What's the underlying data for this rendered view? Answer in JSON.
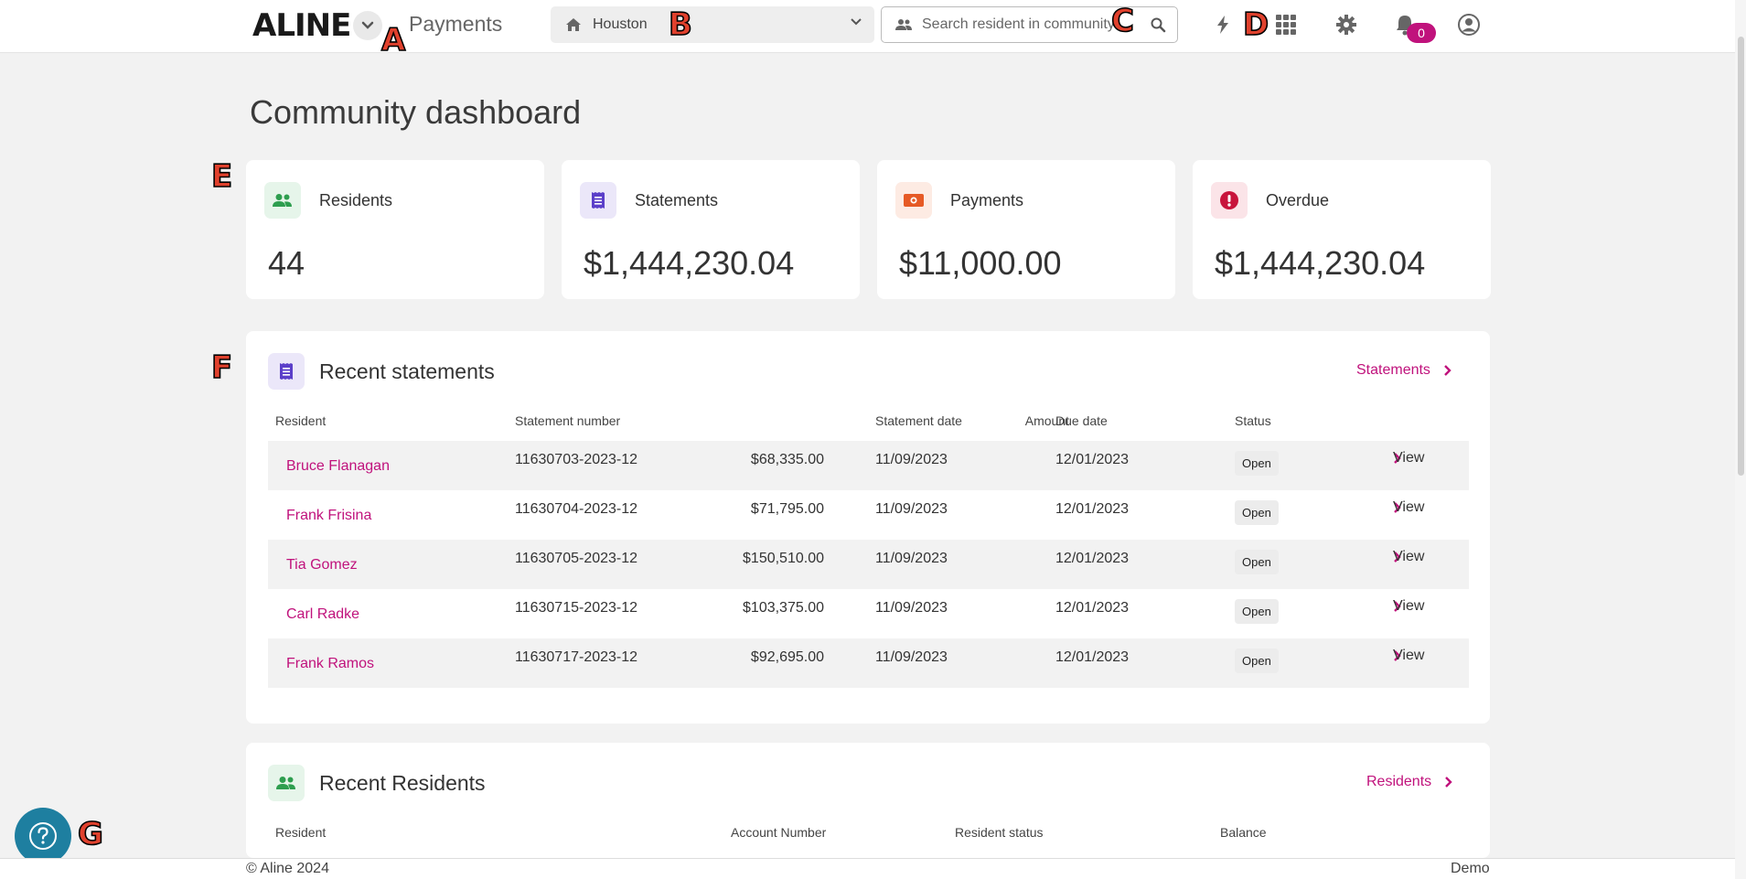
{
  "header": {
    "logo": "ALINE",
    "app_title": "Payments",
    "community": "Houston",
    "search_placeholder": "Search resident in community",
    "notification_count": "0"
  },
  "markers": [
    "A",
    "B",
    "C",
    "D",
    "E",
    "F",
    "G"
  ],
  "page_title": "Community dashboard",
  "stats": [
    {
      "label": "Residents",
      "value": "44",
      "icon": "users-icon",
      "color": "#2e9e4f",
      "bg": "#e6f5ea"
    },
    {
      "label": "Statements",
      "value": "$1,444,230.04",
      "icon": "receipt-icon",
      "color": "#5b3fc9",
      "bg": "#ebe7f9"
    },
    {
      "label": "Payments",
      "value": "$11,000.00",
      "icon": "money-icon",
      "color": "#e65a25",
      "bg": "#fdebe3"
    },
    {
      "label": "Overdue",
      "value": "$1,444,230.04",
      "icon": "alert-icon",
      "color": "#c8143c",
      "bg": "#fbe4e8"
    }
  ],
  "recent_statements": {
    "title": "Recent statements",
    "link": "Statements",
    "columns": [
      "Resident",
      "Statement number",
      "Amount",
      "Statement date",
      "Due date",
      "Status"
    ],
    "rows": [
      {
        "resident": "Bruce Flanagan",
        "number": "11630703-2023-12",
        "amount": "$68,335.00",
        "date": "11/09/2023",
        "due": "12/01/2023",
        "status": "Open",
        "action": "View"
      },
      {
        "resident": "Frank Frisina",
        "number": "11630704-2023-12",
        "amount": "$71,795.00",
        "date": "11/09/2023",
        "due": "12/01/2023",
        "status": "Open",
        "action": "View"
      },
      {
        "resident": "Tia Gomez",
        "number": "11630705-2023-12",
        "amount": "$150,510.00",
        "date": "11/09/2023",
        "due": "12/01/2023",
        "status": "Open",
        "action": "View"
      },
      {
        "resident": "Carl Radke",
        "number": "11630715-2023-12",
        "amount": "$103,375.00",
        "date": "11/09/2023",
        "due": "12/01/2023",
        "status": "Open",
        "action": "View"
      },
      {
        "resident": "Frank Ramos",
        "number": "11630717-2023-12",
        "amount": "$92,695.00",
        "date": "11/09/2023",
        "due": "12/01/2023",
        "status": "Open",
        "action": "View"
      }
    ]
  },
  "recent_residents": {
    "title": "Recent Residents",
    "link": "Residents",
    "columns": [
      "Resident",
      "Account Number",
      "Resident status",
      "Balance"
    ]
  },
  "footer": {
    "copyright": "© Aline 2024",
    "env": "Demo"
  },
  "colors": {
    "accent": "#c0127c",
    "help": "#1e7fa0"
  }
}
